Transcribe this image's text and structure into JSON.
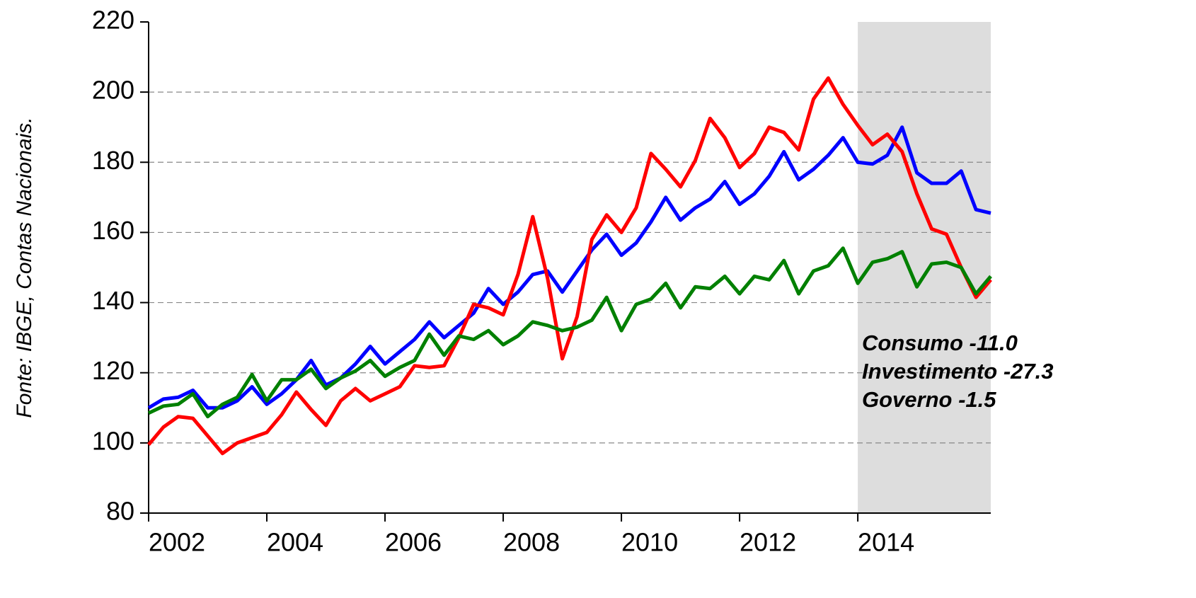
{
  "chart_data": {
    "type": "line",
    "ylabel": "Fonte: IBGE, Contas Nacionais.",
    "annotations": [
      "Consumo -11.0",
      "Investimento -27.3",
      "Governo -1.5"
    ],
    "x": [
      2002,
      2002.25,
      2002.5,
      2002.75,
      2003,
      2003.25,
      2003.5,
      2003.75,
      2004,
      2004.25,
      2004.5,
      2004.75,
      2005,
      2005.25,
      2005.5,
      2005.75,
      2006,
      2006.25,
      2006.5,
      2006.75,
      2007,
      2007.25,
      2007.5,
      2007.75,
      2008,
      2008.25,
      2008.5,
      2008.75,
      2009,
      2009.25,
      2009.5,
      2009.75,
      2010,
      2010.25,
      2010.5,
      2010.75,
      2011,
      2011.25,
      2011.5,
      2011.75,
      2012,
      2012.25,
      2012.5,
      2012.75,
      2013,
      2013.25,
      2013.5,
      2013.75,
      2014,
      2014.25,
      2014.5,
      2014.75,
      2015,
      2015.25,
      2015.5,
      2015.75,
      2016,
      2016.25
    ],
    "series": [
      {
        "color": "#0000ff",
        "values": [
          110,
          112.5,
          113,
          115,
          110,
          110,
          112,
          116,
          111,
          114,
          118,
          123.5,
          116.5,
          118.5,
          122.5,
          127.5,
          122.5,
          126,
          129.5,
          134.5,
          130,
          133.5,
          137,
          144,
          139.5,
          143,
          148,
          149,
          143,
          149,
          155,
          159.5,
          153.5,
          157,
          163,
          170,
          163.5,
          167,
          169.5,
          174.5,
          168,
          171,
          176,
          183,
          175,
          178,
          182,
          187,
          180,
          179.5,
          182,
          190,
          177,
          174,
          174,
          177.5,
          166.5,
          165.5
        ]
      },
      {
        "color": "#ff0000",
        "values": [
          99.5,
          104.5,
          107.5,
          107,
          102,
          97,
          100,
          101.5,
          103,
          108,
          114.5,
          109.5,
          105,
          112,
          115.5,
          112,
          114,
          116,
          122,
          121.5,
          122,
          130,
          139.5,
          138.5,
          136.5,
          148,
          164.5,
          147,
          124,
          136,
          158,
          165,
          160,
          167,
          182.5,
          178,
          173,
          180.5,
          192.5,
          187,
          178.5,
          182.5,
          190,
          188.5,
          183.5,
          198,
          204,
          196.5,
          190.5,
          185,
          188,
          183,
          171,
          161,
          159.5,
          150,
          141.5,
          146.5
        ]
      },
      {
        "color": "#008000",
        "values": [
          108.5,
          110.5,
          111,
          114,
          107.5,
          111,
          113,
          119.5,
          112,
          118,
          118,
          121,
          115.5,
          118.5,
          120.5,
          123.5,
          119,
          121.5,
          123.5,
          131,
          125,
          130.5,
          129.5,
          132,
          128,
          130.5,
          134.5,
          133.5,
          132,
          133,
          135,
          141.5,
          132,
          139.5,
          141,
          145.5,
          138.5,
          144.5,
          144,
          147.5,
          142.5,
          147.5,
          146.5,
          152,
          142.5,
          149,
          150.5,
          155.5,
          145.5,
          151.5,
          152.5,
          154.5,
          144.5,
          151,
          151.5,
          150,
          142.5,
          147.5
        ]
      }
    ],
    "xlim": [
      2002,
      2016.25
    ],
    "xticks": [
      2002,
      2004,
      2006,
      2008,
      2010,
      2012,
      2014
    ],
    "ylim": [
      80,
      220
    ],
    "yticks": [
      80,
      100,
      120,
      140,
      160,
      180,
      200,
      220
    ],
    "grid": true,
    "shaded_region": [
      2014,
      2016.25
    ],
    "shade_color": "#dddddd"
  }
}
